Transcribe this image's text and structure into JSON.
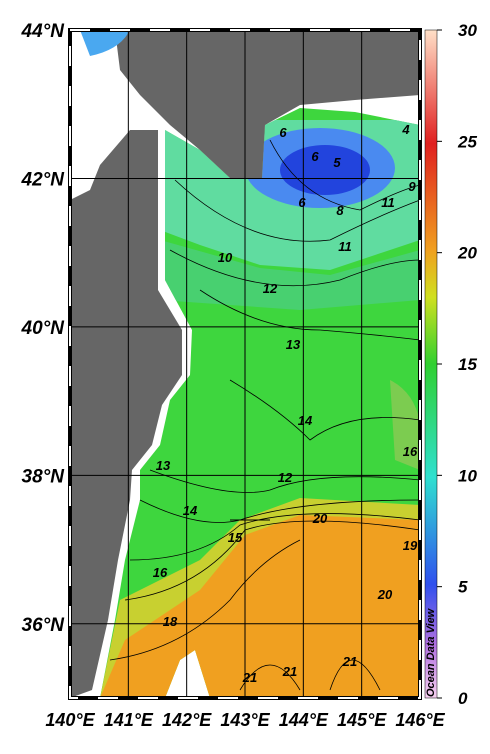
{
  "map": {
    "lat_ticks": [
      {
        "value": 44,
        "label": "44°N"
      },
      {
        "value": 42,
        "label": "42°N"
      },
      {
        "value": 40,
        "label": "40°N"
      },
      {
        "value": 38,
        "label": "38°N"
      },
      {
        "value": 36,
        "label": "36°N"
      }
    ],
    "lon_ticks": [
      {
        "value": 140,
        "label": "140°E"
      },
      {
        "value": 141,
        "label": "141°E"
      },
      {
        "value": 142,
        "label": "142°E"
      },
      {
        "value": 143,
        "label": "143°E"
      },
      {
        "value": 144,
        "label": "144°E"
      },
      {
        "value": 145,
        "label": "145°E"
      },
      {
        "value": 146,
        "label": "146°E"
      }
    ],
    "latlim": [
      35,
      44
    ],
    "lonlim": [
      140,
      146
    ],
    "contour_labels": [
      6,
      6,
      5,
      4,
      6,
      8,
      9,
      11,
      10,
      11,
      12,
      13,
      14,
      16,
      13,
      12,
      14,
      15,
      20,
      19,
      16,
      18,
      20,
      21,
      21,
      21
    ]
  },
  "colorbar": {
    "range": [
      0,
      30
    ],
    "ticks": [
      0,
      5,
      10,
      15,
      20,
      25,
      30
    ],
    "credit": "Ocean Data View"
  }
}
